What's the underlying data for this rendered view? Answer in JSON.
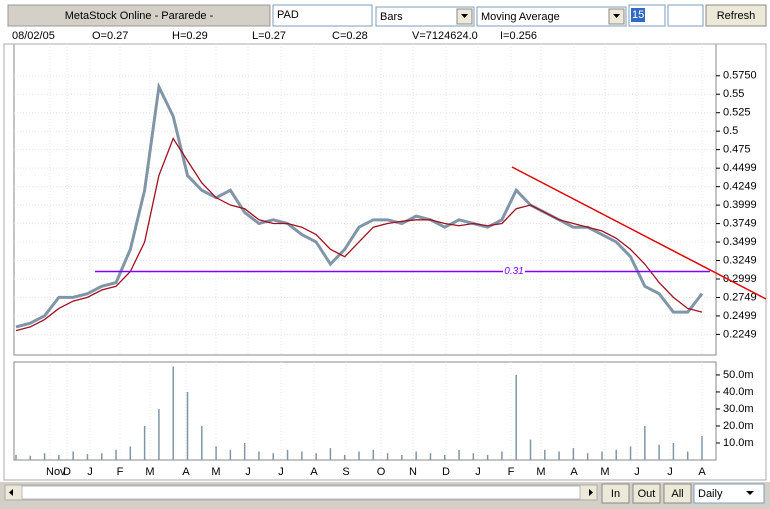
{
  "toolbar": {
    "title": "MetaStock Online - Pararede -",
    "symbol": "PAD",
    "chart_style": "Bars",
    "indicator": "Moving Average",
    "period": "15",
    "refresh": "Refresh"
  },
  "info": {
    "date": "08/02/05",
    "open": "O=0.27",
    "high": "H=0.29",
    "low": "L=0.27",
    "close": "C=0.28",
    "volume": "V=7124624.0",
    "indicator": "I=0.256"
  },
  "time_axis": [
    "Nov",
    "D",
    "J",
    "F",
    "M",
    "A",
    "M",
    "J",
    "J",
    "A",
    "S",
    "O",
    "N",
    "D",
    "J",
    "F",
    "M",
    "A",
    "M",
    "J",
    "J",
    "A"
  ],
  "chart_data": [
    {
      "type": "line",
      "series": [
        {
          "color": "#8096a8",
          "values": [
            0.235,
            0.24,
            0.25,
            0.275,
            0.275,
            0.28,
            0.29,
            0.295,
            0.34,
            0.42,
            0.56,
            0.52,
            0.44,
            0.42,
            0.41,
            0.42,
            0.39,
            0.375,
            0.38,
            0.375,
            0.36,
            0.35,
            0.32,
            0.34,
            0.37,
            0.38,
            0.38,
            0.375,
            0.385,
            0.38,
            0.37,
            0.38,
            0.375,
            0.37,
            0.38,
            0.42,
            0.4,
            0.39,
            0.38,
            0.37,
            0.37,
            0.36,
            0.35,
            0.33,
            0.29,
            0.28,
            0.255,
            0.255,
            0.28
          ]
        },
        {
          "color": "#a01020",
          "values": [
            0.23,
            0.235,
            0.245,
            0.26,
            0.27,
            0.275,
            0.285,
            0.29,
            0.31,
            0.35,
            0.44,
            0.49,
            0.46,
            0.43,
            0.41,
            0.4,
            0.395,
            0.38,
            0.375,
            0.375,
            0.37,
            0.36,
            0.34,
            0.33,
            0.35,
            0.37,
            0.375,
            0.378,
            0.38,
            0.38,
            0.375,
            0.372,
            0.375,
            0.372,
            0.375,
            0.395,
            0.4,
            0.39,
            0.38,
            0.375,
            0.37,
            0.365,
            0.355,
            0.34,
            0.32,
            0.295,
            0.275,
            0.26,
            0.255
          ]
        }
      ],
      "reference_line": 0.31,
      "reference_color": "#8000ff",
      "ylim": [
        0.197,
        0.618
      ],
      "yticks": [
        {
          "value": 0.575,
          "label": "0.5750"
        },
        0.55,
        0.525,
        {
          "value": 0.5,
          "label": "0.5"
        },
        0.475,
        0.4499,
        0.4249,
        0.3999,
        0.3749,
        0.3499,
        0.3249,
        0.2999,
        0.2749,
        0.2499,
        0.2249
      ],
      "grid": true
    },
    {
      "type": "bar",
      "color": "#8096a8",
      "values": [
        3000000,
        2500000,
        4000000,
        3000000,
        5000000,
        3500000,
        4000000,
        6000000,
        8000000,
        20000000,
        30000000,
        55000000,
        40000000,
        20000000,
        8000000,
        6000000,
        10000000,
        5000000,
        4000000,
        6000000,
        5000000,
        4000000,
        7000000,
        3000000,
        5000000,
        6000000,
        4000000,
        3000000,
        5000000,
        4000000,
        3000000,
        6000000,
        4000000,
        3000000,
        5000000,
        50000000,
        12000000,
        6000000,
        5000000,
        7000000,
        4000000,
        5000000,
        6000000,
        8000000,
        20000000,
        9000000,
        10000000,
        5000000,
        14000000
      ],
      "ylim": [
        0,
        57600000
      ],
      "yticks": [
        {
          "value": 50000000,
          "label": "50.0m"
        },
        {
          "value": 40000000,
          "label": "40.0m"
        },
        {
          "value": 30000000,
          "label": "30.0m"
        },
        {
          "value": 20000000,
          "label": "20.0m"
        },
        {
          "value": 10000000,
          "label": "10.0m"
        }
      ]
    }
  ],
  "footer": {
    "buttons": [
      "In",
      "Out",
      "All"
    ],
    "interval": "Daily"
  }
}
